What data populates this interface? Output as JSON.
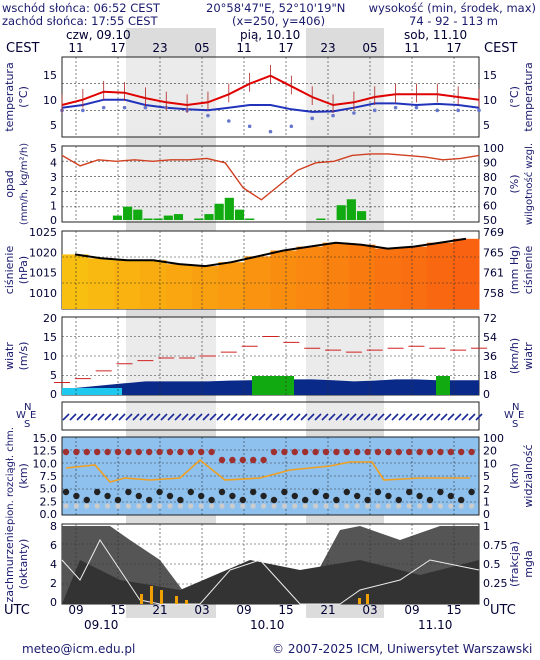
{
  "header": {
    "sunrise": "wschód słońca: 06:52 CEST",
    "sunset": "zachód słońca: 17:55 CEST",
    "coords": "20°58'47\"E, 52°10'19\"N",
    "grid": "(x=250, y=406)",
    "elev_label": "wysokość (min, środek, max)",
    "elev_values": "74 - 92 - 113 m"
  },
  "timeline": {
    "tz_left": "CEST",
    "tz_right": "CEST",
    "top_hours": [
      "11",
      "17",
      "23",
      "05",
      "11",
      "17",
      "23",
      "05",
      "11",
      "17"
    ],
    "top_dates": [
      "czw, 09.10",
      "pią, 10.10",
      "sob, 11.10"
    ],
    "utc_left": "UTC",
    "utc_right": "UTC",
    "bottom_hours": [
      "09",
      "15",
      "21",
      "03",
      "09",
      "15",
      "21",
      "03",
      "09",
      "15"
    ],
    "bottom_dates": [
      "09.10",
      "10.10",
      "11.10"
    ]
  },
  "panels": {
    "temperature": {
      "left_label": "temperatura",
      "left_unit": "(°C)",
      "right_label": "(°C)",
      "right_unit": "temperatura",
      "ticks": [
        "15",
        "10",
        "5"
      ]
    },
    "precip": {
      "left_label": "opad",
      "left_unit": "(mm/h, kg/m²/h)",
      "right_label": "(%)",
      "right_unit": "wilgotność wzgl.",
      "left_ticks": [
        "5",
        "4",
        "3",
        "2",
        "1",
        "0"
      ],
      "right_ticks": [
        "100",
        "90",
        "80",
        "70",
        "60",
        "50"
      ]
    },
    "pressure": {
      "left_label": "ciśnienie",
      "left_unit": "(hPa)",
      "right_label": "(mm Hg)",
      "right_unit": "ciśnienie",
      "left_ticks": [
        "1025",
        "1020",
        "1015",
        "1010"
      ],
      "right_ticks": [
        "769",
        "765",
        "761",
        "758"
      ]
    },
    "wind": {
      "left_label": "wiatr",
      "left_unit": "(m/s)",
      "right_label": "(km/h)",
      "right_unit": "wiatr",
      "left_ticks": [
        "20",
        "15",
        "10",
        "5",
        "0"
      ],
      "right_ticks": [
        "72",
        "54",
        "36",
        "18",
        "0"
      ]
    },
    "winddir": {
      "compass_n": "N",
      "compass_s": "S",
      "compass_w": "W",
      "compass_e": "E"
    },
    "visibility": {
      "left_label": "pion. rozciągł. chm.",
      "left_unit": "(km)",
      "right_label": "(km)",
      "right_unit": "widzialność",
      "left_ticks": [
        "15.0",
        "12.5",
        "10.0",
        "7.5",
        "5.0",
        "2.5",
        "0.0"
      ],
      "right_ticks": [
        "100",
        "20",
        "10",
        "5",
        "2",
        "1",
        "0"
      ]
    },
    "cloud": {
      "left_label": "zachmurzenie",
      "left_unit": "(oktanty)",
      "right_label": "(frakcja)",
      "right_unit": "mgła",
      "left_ticks": [
        "8",
        "6",
        "4",
        "2",
        "0"
      ],
      "right_ticks": [
        "1",
        "0.75",
        "0.5",
        "0.25",
        "0"
      ]
    }
  },
  "footer": {
    "email": "meteo@icm.edu.pl",
    "copyright": "© 2007-2025 ICM, Uniwersytet Warszawski"
  },
  "colors": {
    "accent": "#1a1a6e",
    "temp": "#e00000",
    "dew": "#2233bb",
    "precip": "#11aa11",
    "night": "#dcdcdc"
  },
  "chart_data": [
    {
      "type": "line",
      "title": "temperatura",
      "ylabel": "(°C)",
      "ylim": [
        4,
        19
      ],
      "x_hours_utc": [
        0,
        3,
        6,
        9,
        12,
        15,
        18,
        21,
        24,
        27,
        30,
        33,
        36,
        39,
        42,
        45,
        48,
        51,
        54,
        57,
        60
      ],
      "series": [
        {
          "name": "temperatura",
          "values": [
            10,
            11,
            12.5,
            12.3,
            11.3,
            10.5,
            10,
            10.5,
            12,
            14,
            15.5,
            13.5,
            11.5,
            10,
            10.5,
            11.5,
            12,
            12,
            12,
            11.5,
            11
          ]
        },
        {
          "name": "punkt rosy",
          "values": [
            9.5,
            10,
            11,
            11,
            10,
            9.5,
            9.2,
            9,
            9.5,
            10,
            10,
            9.2,
            8.7,
            8.8,
            9.5,
            10.3,
            10.3,
            10,
            10.2,
            10,
            9.5
          ]
        },
        {
          "name": "temperatura odczuwalna",
          "values": [
            9,
            9,
            9.5,
            9.5,
            9.5,
            9.5,
            9,
            8,
            7,
            6,
            5,
            6,
            7.5,
            8,
            8.5,
            9,
            9.5,
            9.5,
            9,
            9,
            9
          ]
        }
      ]
    },
    {
      "type": "bar",
      "title": "opad",
      "ylabel": "(mm/h, kg/m²/h)",
      "ylim": [
        0,
        5
      ],
      "series": [
        {
          "name": "opad",
          "values": [
            0,
            0,
            0,
            0,
            0,
            0.3,
            0.9,
            0.7,
            0.1,
            0.1,
            0.3,
            0.4,
            0,
            0.1,
            0.4,
            1.1,
            1.5,
            0.7,
            0.1,
            0,
            0,
            0,
            0,
            0,
            0,
            0.1,
            0,
            1.0,
            1.4,
            0.6,
            0,
            0,
            0,
            0,
            0,
            0,
            0,
            0,
            0,
            0,
            0
          ]
        },
        {
          "name": "wilgotność wzgl.",
          "values": [
            95,
            88,
            92,
            91,
            92,
            91,
            92,
            92,
            93,
            90,
            73,
            65,
            75,
            85,
            90,
            91,
            95,
            96,
            96,
            95,
            94,
            92,
            93,
            95
          ]
        }
      ]
    },
    {
      "type": "line",
      "title": "ciśnienie",
      "ylabel": "(hPa)",
      "ylim": [
        1005,
        1025
      ],
      "series": [
        {
          "name": "ciśnienie",
          "values": [
            1019,
            1018,
            1017.5,
            1017.5,
            1016.5,
            1016,
            1017,
            1018.5,
            1020,
            1021,
            1022,
            1021.5,
            1020.5,
            1021,
            1022,
            1023
          ]
        }
      ]
    },
    {
      "type": "line",
      "title": "wiatr",
      "ylabel": "(m/s)",
      "ylim": [
        0,
        20
      ],
      "series": [
        {
          "name": "porywy",
          "values": [
            3.2,
            4.2,
            6.2,
            8,
            8.8,
            9.5,
            9.5,
            10,
            11,
            12.5,
            15,
            13.5,
            12,
            11.5,
            11,
            11.5,
            12,
            12.5,
            12,
            11.5,
            12
          ]
        },
        {
          "name": "prędkość",
          "values": [
            1.5,
            2,
            2.5,
            3,
            3.5,
            3.5,
            3.5,
            3.5,
            3.7,
            3.8,
            4,
            4,
            4,
            3.8,
            3.5,
            3.7,
            4,
            4,
            3.8,
            3.8,
            3.8
          ]
        }
      ]
    },
    {
      "type": "scatter",
      "title": "pion. rozciągł. chm. / widzialność",
      "ylabel": "(km)",
      "ylim": [
        0,
        15
      ]
    },
    {
      "type": "area",
      "title": "zachmurzenie",
      "ylabel": "(oktanty)",
      "ylim": [
        0,
        8
      ]
    }
  ]
}
